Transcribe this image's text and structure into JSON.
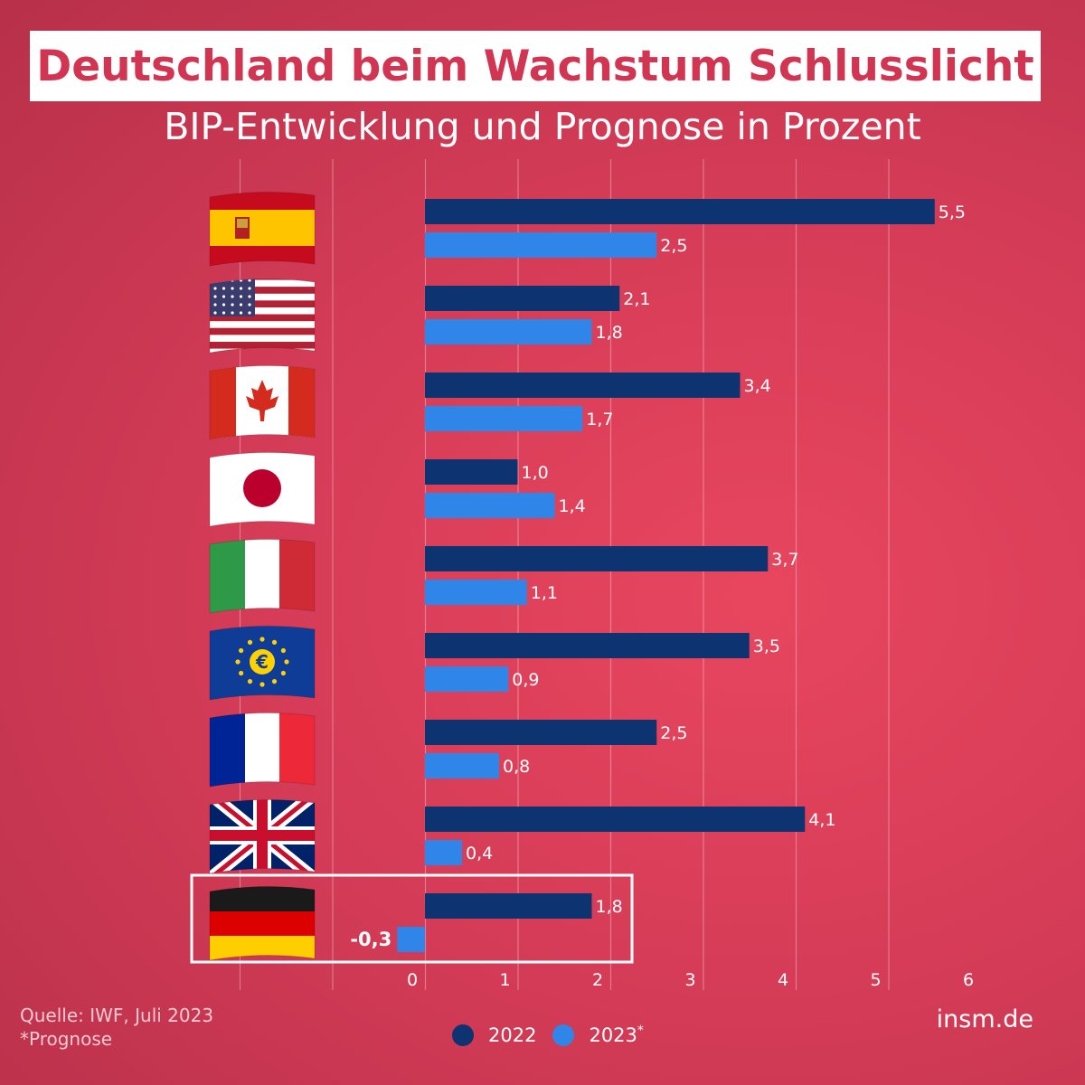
{
  "title": "Deutschland beim Wachstum Schlusslicht",
  "subtitle": "BIP-Entwicklung und Prognose in Prozent",
  "source": "Quelle: IWF, Juli 2023",
  "footnote": "*Prognose",
  "brand": "insm.de",
  "colors": {
    "series_2022": "#0d3470",
    "series_2023": "#2f86e8",
    "text": "#ffffff",
    "highlight_box": "#ffffff"
  },
  "legend": [
    {
      "label": "2022",
      "suffix": ""
    },
    {
      "label": "2023",
      "suffix": "*"
    }
  ],
  "chart_data": {
    "type": "bar",
    "orientation": "horizontal",
    "categories": [
      "Spanien",
      "USA",
      "Kanada",
      "Japan",
      "Italien",
      "Eurozone",
      "Frankreich",
      "Vereinigtes Königreich",
      "Deutschland"
    ],
    "category_icons": [
      "flag-spain-icon",
      "flag-usa-icon",
      "flag-canada-icon",
      "flag-japan-icon",
      "flag-italy-icon",
      "flag-eu-icon",
      "flag-france-icon",
      "flag-uk-icon",
      "flag-germany-icon"
    ],
    "series": [
      {
        "name": "2022",
        "values": [
          5.5,
          2.1,
          3.4,
          1.0,
          3.7,
          3.5,
          2.5,
          4.1,
          1.8
        ],
        "labels": [
          "5,5",
          "2,1",
          "3,4",
          "1,0",
          "3,7",
          "3,5",
          "2,5",
          "4,1",
          "1,8"
        ]
      },
      {
        "name": "2023",
        "values": [
          2.5,
          1.8,
          1.7,
          1.4,
          1.1,
          0.9,
          0.8,
          0.4,
          -0.3
        ],
        "labels": [
          "2,5",
          "1,8",
          "1,7",
          "1,4",
          "1,1",
          "0,9",
          "0,8",
          "0,4",
          "-0,3"
        ]
      }
    ],
    "xlim": [
      -1,
      6
    ],
    "xticks": [
      0,
      1,
      2,
      3,
      4,
      5,
      6
    ],
    "xtick_labels": [
      "0",
      "1",
      "2",
      "3",
      "4",
      "5",
      "6"
    ],
    "grid": true,
    "highlight_category": "Deutschland",
    "legend_position": "bottom"
  }
}
